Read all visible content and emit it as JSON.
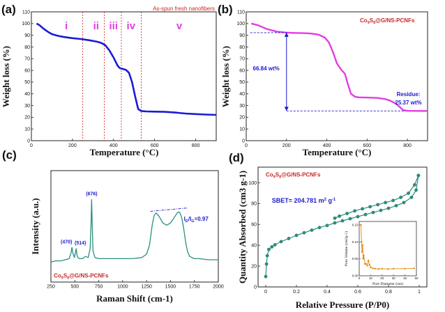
{
  "chart_data": [
    {
      "panel": "(a)",
      "type": "line",
      "title": "",
      "xlabel": "Temperature (°C)",
      "ylabel": "Weight loss (%)",
      "xlim": [
        0,
        900
      ],
      "ylim": [
        0,
        110
      ],
      "xticks": [
        0,
        200,
        400,
        600,
        800
      ],
      "yticks": [
        0,
        10,
        20,
        30,
        40,
        50,
        60,
        70,
        80,
        90,
        100,
        110
      ],
      "color": "#1a1ad6",
      "x": [
        25,
        40,
        60,
        80,
        100,
        130,
        160,
        200,
        240,
        280,
        320,
        340,
        360,
        380,
        400,
        420,
        430,
        440,
        460,
        475,
        490,
        505,
        520,
        535,
        560,
        600,
        650,
        700,
        750,
        800,
        850,
        900
      ],
      "y": [
        100,
        98.5,
        95.5,
        93,
        91,
        89.5,
        88.5,
        87.5,
        86.8,
        85.8,
        84.5,
        83.5,
        81.5,
        77,
        71,
        64,
        62,
        61.5,
        60.5,
        58,
        50,
        38,
        27,
        25.3,
        25,
        24.8,
        24.6,
        24,
        23.2,
        22.7,
        22.3,
        22
      ],
      "regions": [
        {
          "label": "i",
          "x": 170
        },
        {
          "label": "ii",
          "x": 315
        },
        {
          "label": "iii",
          "x": 400
        },
        {
          "label": "iv",
          "x": 485
        },
        {
          "label": "v",
          "x": 720
        }
      ],
      "region_lines": [
        250,
        355,
        438,
        535
      ],
      "annotation": "As-spun fresh nanofibers"
    },
    {
      "panel": "(b)",
      "type": "line",
      "xlabel": "Temperature (°C)",
      "ylabel": "Weight loss (%)",
      "xlim": [
        0,
        900
      ],
      "ylim": [
        0,
        110
      ],
      "xticks": [
        0,
        200,
        400,
        600,
        800
      ],
      "yticks": [
        0,
        10,
        20,
        30,
        40,
        50,
        60,
        70,
        80,
        90,
        100,
        110
      ],
      "color": "#e23de2",
      "x": [
        25,
        60,
        100,
        150,
        200,
        240,
        280,
        320,
        360,
        390,
        410,
        430,
        450,
        470,
        490,
        505,
        520,
        540,
        560,
        600,
        650,
        690,
        710,
        740,
        760,
        780,
        800,
        850,
        900
      ],
      "y": [
        100,
        98.5,
        95.5,
        93.2,
        92.3,
        92,
        91.8,
        91.5,
        90.5,
        88,
        84,
        76,
        66,
        61,
        57,
        48,
        40,
        37.5,
        37,
        36.8,
        36.5,
        35.5,
        34.5,
        32,
        29,
        26,
        25.5,
        25.4,
        25.4
      ],
      "legend": "Co9S8@G/NS-PCNFs",
      "delta_label": "66.84 wt%",
      "residue_label_1": "Residue:",
      "residue_label_2": "25.37 wt%",
      "upper_level": 92.2,
      "lower_level": 25.37
    },
    {
      "panel": "(c)",
      "type": "line",
      "xlabel": "Raman Shift (cm-1)",
      "ylabel": "Intensity (a.u.)",
      "xlim": [
        250,
        2000
      ],
      "xticks": [
        250,
        500,
        750,
        1000,
        1250,
        1500,
        1750,
        2000
      ],
      "color": "#2a8f7d",
      "x": [
        250,
        300,
        350,
        400,
        440,
        460,
        470,
        480,
        495,
        505,
        514,
        525,
        545,
        580,
        610,
        640,
        660,
        670,
        676,
        682,
        690,
        710,
        750,
        800,
        900,
        1000,
        1100,
        1200,
        1250,
        1280,
        1310,
        1330,
        1350,
        1380,
        1420,
        1460,
        1500,
        1540,
        1570,
        1590,
        1605,
        1620,
        1640,
        1660,
        1680,
        1700,
        1750,
        1800,
        1900,
        2000
      ],
      "y": [
        18,
        19,
        19,
        20,
        21,
        26,
        31,
        26,
        22,
        26,
        30,
        23,
        21,
        21,
        23,
        22,
        30,
        54,
        74,
        52,
        28,
        22,
        21,
        21,
        21,
        21,
        21,
        22,
        25,
        33,
        52,
        60,
        62,
        59,
        53,
        51,
        53,
        58,
        62,
        63,
        61,
        57,
        47,
        35,
        27,
        23,
        21,
        21,
        20,
        20
      ],
      "ylim": [
        0,
        100
      ],
      "peaks": [
        {
          "label": "(470)",
          "x": 470,
          "y": 31
        },
        {
          "label": "(514)",
          "x": 514,
          "y": 30
        },
        {
          "label": "(676)",
          "x": 676,
          "y": 74
        }
      ],
      "ratio_text": "ID/IG=0.97",
      "legend": "Co9S8@G/NS-PCNFs"
    },
    {
      "panel": "(d)",
      "type": "line",
      "xlabel": "Relative Pressure (P/P0)",
      "ylabel": "Quantity Absorbed (cm3 g-1)",
      "xlim": [
        -0.05,
        1.05
      ],
      "ylim": [
        0,
        115
      ],
      "xticks": [
        0.0,
        0.2,
        0.4,
        0.6,
        0.8,
        1.0
      ],
      "yticks": [
        0,
        20,
        40,
        60,
        80,
        100
      ],
      "color": "#2a8f7d",
      "adsorption_x": [
        0.0,
        0.005,
        0.01,
        0.02,
        0.04,
        0.06,
        0.1,
        0.15,
        0.2,
        0.25,
        0.3,
        0.35,
        0.4,
        0.45,
        0.5,
        0.55,
        0.6,
        0.65,
        0.7,
        0.75,
        0.8,
        0.85,
        0.9,
        0.95,
        0.98,
        0.995
      ],
      "adsorption_y": [
        10,
        22,
        30,
        36,
        38.5,
        40.5,
        43.5,
        46.5,
        49.5,
        52,
        54.5,
        57,
        59,
        61.5,
        63.5,
        65.5,
        67.5,
        69.5,
        71.5,
        73.5,
        75.5,
        78,
        81,
        86,
        93,
        107
      ],
      "desorption_x": [
        0.995,
        0.97,
        0.93,
        0.88,
        0.83,
        0.78,
        0.73,
        0.68,
        0.63,
        0.58,
        0.53,
        0.48,
        0.45
      ],
      "desorption_y": [
        107,
        98,
        90,
        86,
        83,
        81,
        79,
        77,
        75,
        73,
        70.5,
        68,
        66
      ],
      "legend": "Co9S8@G/NS-PCNFs",
      "sbet_text": "SBET= 204.781 m2 g-1",
      "inset": {
        "type": "line",
        "xlabel": "Pore Diameter (nm)",
        "ylabel": "Pore Volume (cm3g-1)",
        "xlim": [
          0,
          50
        ],
        "ylim": [
          0,
          0.16
        ],
        "xticks": [
          0,
          10,
          20,
          30,
          40,
          50
        ],
        "yticks": [
          0.0,
          0.05,
          0.1,
          0.15
        ],
        "color": "#e08a12",
        "x": [
          1.5,
          2,
          2.5,
          3,
          3.5,
          4,
          5,
          6,
          7,
          8,
          9,
          10,
          12,
          14,
          17,
          20,
          25,
          30,
          40,
          48
        ],
        "y": [
          0.15,
          0.1,
          0.07,
          0.09,
          0.05,
          0.06,
          0.035,
          0.035,
          0.03,
          0.045,
          0.032,
          0.025,
          0.022,
          0.021,
          0.02,
          0.021,
          0.02,
          0.021,
          0.021,
          0.022
        ]
      }
    }
  ]
}
